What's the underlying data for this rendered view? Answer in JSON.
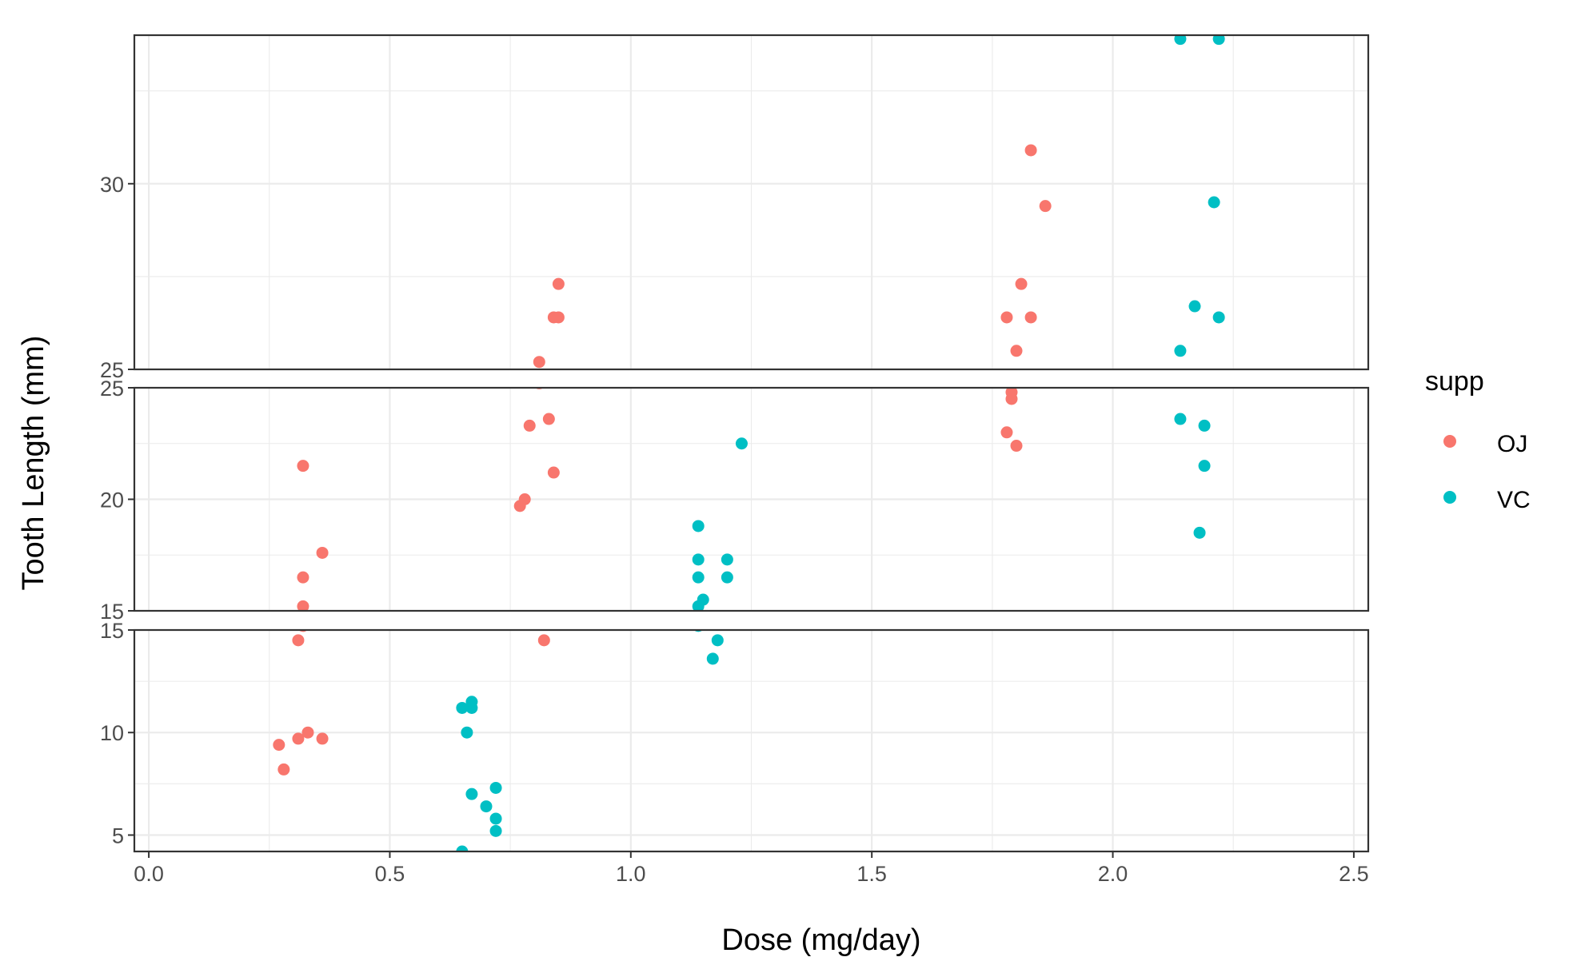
{
  "chart_data": {
    "type": "scatter",
    "title": "",
    "xlabel": "Dose (mg/day)",
    "ylabel": "Tooth Length (mm)",
    "xlim": [
      -0.03,
      2.53
    ],
    "x_ticks": [
      "0.0",
      "0.5",
      "1.0",
      "1.5",
      "2.0",
      "2.5"
    ],
    "grid": true,
    "legend": {
      "title": "supp",
      "position": "right",
      "entries": [
        "OJ",
        "VC"
      ]
    },
    "colors": {
      "OJ": "#F8766D",
      "VC": "#00BFC4"
    },
    "y_break_segments": [
      {
        "ylim": [
          25,
          34
        ],
        "ticks": [
          "25",
          "30"
        ]
      },
      {
        "ylim": [
          15,
          25
        ],
        "ticks": [
          "15",
          "20",
          "25"
        ]
      },
      {
        "ylim": [
          4.2,
          15
        ],
        "ticks": [
          "5",
          "10",
          "15"
        ]
      }
    ],
    "series": [
      {
        "name": "OJ",
        "points": [
          [
            0.27,
            9.4
          ],
          [
            0.28,
            8.2
          ],
          [
            0.31,
            9.7
          ],
          [
            0.33,
            10.0
          ],
          [
            0.36,
            9.7
          ],
          [
            0.31,
            14.5
          ],
          [
            0.32,
            15.2
          ],
          [
            0.32,
            16.5
          ],
          [
            0.36,
            17.6
          ],
          [
            0.32,
            21.5
          ],
          [
            0.82,
            14.5
          ],
          [
            0.77,
            19.7
          ],
          [
            0.78,
            20.0
          ],
          [
            0.84,
            21.2
          ],
          [
            0.79,
            23.3
          ],
          [
            0.83,
            23.6
          ],
          [
            0.81,
            25.2
          ],
          [
            0.84,
            26.4
          ],
          [
            0.85,
            27.3
          ],
          [
            0.85,
            26.4
          ],
          [
            1.78,
            23.0
          ],
          [
            1.8,
            22.4
          ],
          [
            1.79,
            24.5
          ],
          [
            1.79,
            24.8
          ],
          [
            1.8,
            25.5
          ],
          [
            1.78,
            26.4
          ],
          [
            1.83,
            26.4
          ],
          [
            1.81,
            27.3
          ],
          [
            1.86,
            29.4
          ],
          [
            1.83,
            30.9
          ]
        ]
      },
      {
        "name": "VC",
        "points": [
          [
            0.65,
            4.2
          ],
          [
            0.72,
            5.2
          ],
          [
            0.72,
            5.8
          ],
          [
            0.7,
            6.4
          ],
          [
            0.67,
            7.0
          ],
          [
            0.72,
            7.3
          ],
          [
            0.66,
            10.0
          ],
          [
            0.65,
            11.2
          ],
          [
            0.67,
            11.2
          ],
          [
            0.67,
            11.5
          ],
          [
            1.17,
            13.6
          ],
          [
            1.18,
            14.5
          ],
          [
            1.14,
            15.2
          ],
          [
            1.15,
            15.5
          ],
          [
            1.14,
            16.5
          ],
          [
            1.2,
            16.5
          ],
          [
            1.14,
            17.3
          ],
          [
            1.2,
            17.3
          ],
          [
            1.14,
            18.8
          ],
          [
            1.23,
            22.5
          ],
          [
            2.18,
            18.5
          ],
          [
            2.19,
            21.5
          ],
          [
            2.19,
            23.3
          ],
          [
            2.14,
            23.6
          ],
          [
            2.14,
            25.5
          ],
          [
            2.17,
            26.7
          ],
          [
            2.22,
            26.4
          ],
          [
            2.21,
            29.5
          ],
          [
            2.22,
            33.9
          ],
          [
            2.14,
            33.9
          ]
        ]
      }
    ]
  }
}
